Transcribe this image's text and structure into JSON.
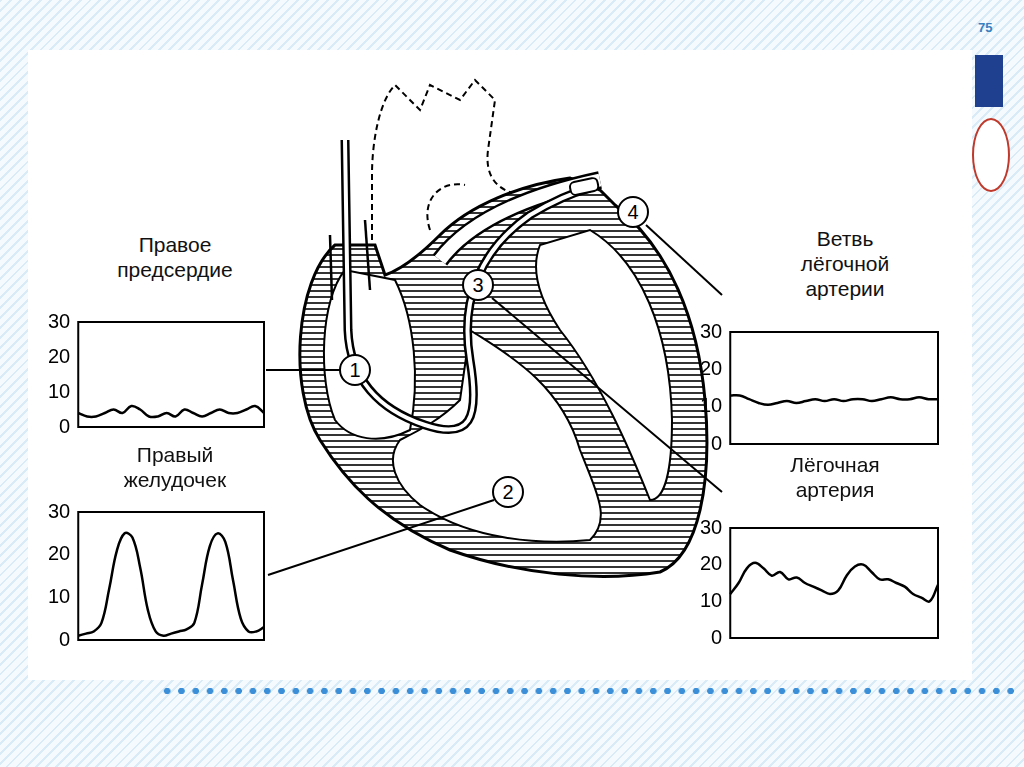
{
  "page_number": "75",
  "markers": [
    "1",
    "2",
    "3",
    "4"
  ],
  "chart_data": [
    {
      "type": "line",
      "title": "Правое предсердие",
      "categories": [
        null,
        null,
        null,
        null,
        null,
        null,
        null,
        null,
        null,
        null,
        null,
        null,
        null,
        null,
        null,
        null,
        null,
        null,
        null,
        null,
        null,
        null
      ],
      "values": [
        4,
        3,
        3,
        4,
        5,
        4,
        6,
        5,
        3,
        3,
        4,
        3,
        5,
        4,
        3,
        4,
        5,
        4,
        4,
        5,
        6,
        4
      ],
      "ylim": [
        0,
        30
      ],
      "yticks": [
        0,
        10,
        20,
        30
      ],
      "grid": false,
      "tick_labels": "y",
      "color": "#000000"
    },
    {
      "type": "line",
      "title": "Правый желудочек",
      "categories": [
        null,
        null,
        null,
        null,
        null,
        null,
        null,
        null,
        null,
        null,
        null,
        null,
        null,
        null,
        null,
        null,
        null,
        null,
        null,
        null,
        null,
        null,
        null,
        null,
        null
      ],
      "values": [
        1,
        1.5,
        2,
        4,
        12,
        21,
        25,
        24,
        17,
        7,
        2,
        1,
        1.5,
        2,
        2.5,
        4,
        13,
        22,
        25,
        23,
        14,
        5,
        2,
        2,
        3
      ],
      "ylim": [
        0,
        30
      ],
      "yticks": [
        0,
        10,
        20,
        30
      ],
      "grid": false,
      "tick_labels": "y",
      "color": "#000000"
    },
    {
      "type": "line",
      "title": "Ветвь лёгочной артерии",
      "categories": [
        null,
        null,
        null,
        null,
        null,
        null,
        null,
        null,
        null,
        null,
        null,
        null,
        null,
        null,
        null,
        null,
        null,
        null,
        null,
        null,
        null,
        null,
        null
      ],
      "values": [
        13,
        13,
        12,
        11,
        10.5,
        11,
        11.5,
        11,
        11.5,
        12,
        11.5,
        12,
        11.5,
        12,
        12,
        11.5,
        12,
        12.5,
        12,
        12,
        12.5,
        12,
        12
      ],
      "ylim": [
        0,
        30
      ],
      "yticks": [
        0,
        10,
        20,
        30
      ],
      "grid": false,
      "tick_labels": "y",
      "color": "#000000"
    },
    {
      "type": "line",
      "title": "Лёгочная артерия",
      "categories": [
        null,
        null,
        null,
        null,
        null,
        null,
        null,
        null,
        null,
        null,
        null,
        null,
        null,
        null,
        null,
        null,
        null,
        null,
        null,
        null,
        null,
        null,
        null,
        null,
        null,
        null
      ],
      "values": [
        12,
        15,
        19,
        20.5,
        19,
        17,
        18,
        16,
        16.5,
        15,
        14,
        13,
        12,
        13,
        17,
        19.5,
        20,
        18,
        16,
        16,
        15,
        14,
        12,
        11,
        10,
        14.5
      ],
      "ylim": [
        0,
        30
      ],
      "yticks": [
        0,
        10,
        20,
        30
      ],
      "grid": false,
      "tick_labels": "y",
      "color": "#000000"
    }
  ]
}
